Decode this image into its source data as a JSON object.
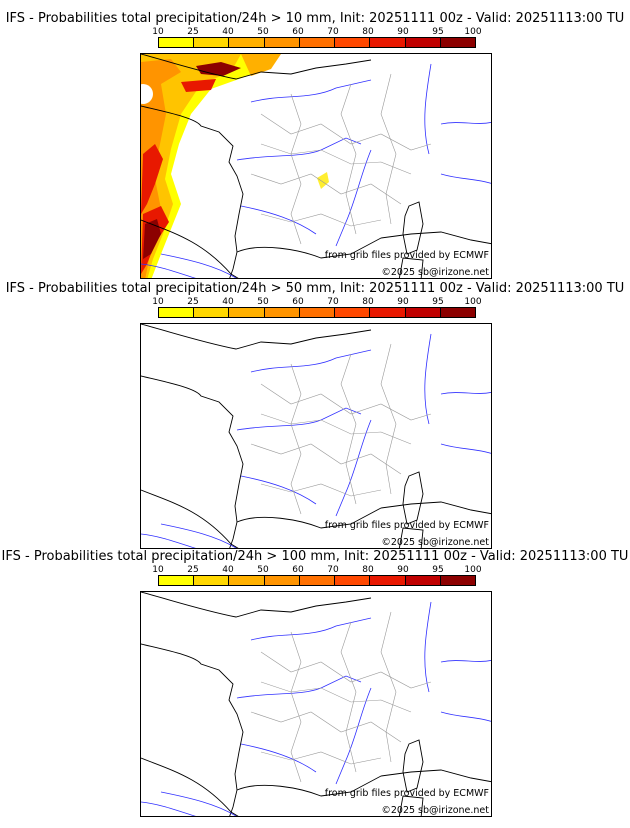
{
  "colorbar": {
    "ticks": [
      "10",
      "25",
      "40",
      "50",
      "60",
      "70",
      "80",
      "90",
      "95",
      "100"
    ],
    "colors": [
      "#ffff00",
      "#ffd700",
      "#ffb000",
      "#ff9400",
      "#ff7000",
      "#ff4800",
      "#e81800",
      "#c00000",
      "#8c0000",
      "#5a0000"
    ]
  },
  "credits": {
    "source": "from grib files provided by ECMWF",
    "copyright": "©2025 sb@irizone.net"
  },
  "panels": [
    {
      "title": "IFS - Probabilities total precipitation/24h > 10 mm, Init: 20251111 00z - Valid: 20251113:00 TU"
    },
    {
      "title": "IFS - Probabilities total precipitation/24h > 50 mm, Init: 20251111 00z - Valid: 20251113:00 TU"
    },
    {
      "title": "IFS - Probabilities total precipitation/24h > 100 mm, Init: 20251111 00z - Valid: 20251113:00 TU"
    }
  ]
}
